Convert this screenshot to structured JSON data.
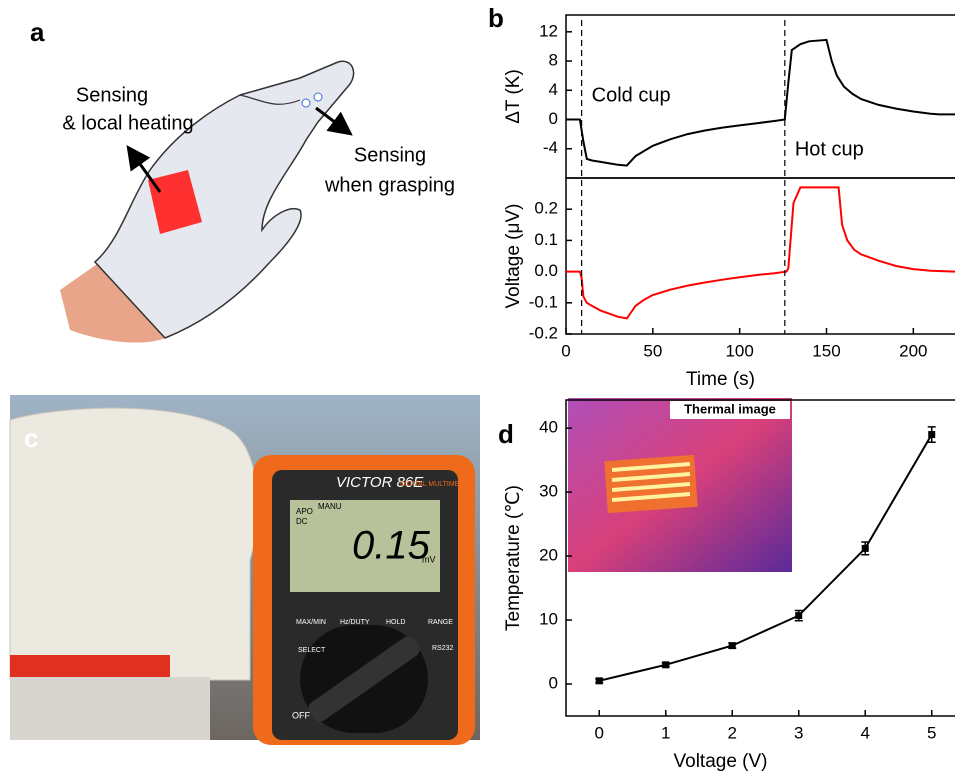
{
  "panel_labels": [
    "a",
    "b",
    "c",
    "d"
  ],
  "panel_a": {
    "labels": [
      "Sensing",
      "& local heating",
      "Sensing",
      "when grasping"
    ]
  },
  "panel_c": {
    "brand": "VICTOR 86E",
    "subtitle": "DIGITAL MULTIMETER",
    "mode": [
      "APO",
      "DC",
      "MANU"
    ],
    "reading": "0.15",
    "unit": "mV",
    "buttons": [
      "MAX/MIN",
      "Hz/DUTY",
      "HOLD",
      "RANGE",
      "SELECT",
      "RS232"
    ],
    "off": "OFF"
  },
  "chart_data": [
    {
      "type": "line",
      "ylabel": "ΔT (K)",
      "color": "#000000",
      "xlim": [
        0,
        224
      ],
      "ylim": [
        -8,
        14.3
      ],
      "yticks": [
        12,
        8,
        4,
        0,
        -4
      ],
      "x": [
        0,
        5,
        8,
        10,
        12,
        15,
        20,
        25,
        30,
        35,
        40,
        50,
        60,
        70,
        80,
        90,
        100,
        110,
        120,
        126,
        128,
        130,
        135,
        140,
        150,
        153,
        156,
        160,
        165,
        170,
        180,
        190,
        200,
        210,
        215,
        224
      ],
      "values": [
        0,
        0,
        0,
        -3,
        -5.4,
        -5.6,
        -5.8,
        -6.0,
        -6.2,
        -6.3,
        -5,
        -3.6,
        -2.7,
        -2,
        -1.5,
        -1.1,
        -0.8,
        -0.5,
        -0.2,
        0,
        5,
        9.5,
        10.3,
        10.7,
        10.9,
        8,
        6,
        4.5,
        3.5,
        2.8,
        2,
        1.5,
        1.1,
        0.8,
        0.7,
        0.7
      ],
      "annotations": [
        {
          "text": "Cold cup",
          "x": 9
        },
        {
          "text": "Hot cup",
          "x": 126
        }
      ]
    },
    {
      "type": "line",
      "ylabel": "Voltage (μV)",
      "xlabel": "Time (s)",
      "color": "#ff0000",
      "xlim": [
        0,
        224
      ],
      "ylim": [
        -0.2,
        0.3
      ],
      "xticks": [
        0,
        50,
        100,
        150,
        200
      ],
      "yticks": [
        0.2,
        0.1,
        {
          "value": 0,
          "label": "0.0"
        },
        -0.1,
        -0.2
      ],
      "x": [
        0,
        8,
        9,
        10,
        12,
        15,
        20,
        25,
        30,
        35,
        40,
        45,
        50,
        60,
        70,
        80,
        90,
        100,
        110,
        120,
        127,
        128,
        131,
        135,
        145,
        157,
        159,
        162,
        166,
        170,
        180,
        190,
        200,
        210,
        224
      ],
      "values": [
        0,
        0,
        -0.02,
        -0.08,
        -0.1,
        -0.11,
        -0.125,
        -0.135,
        -0.145,
        -0.15,
        -0.11,
        -0.09,
        -0.075,
        -0.058,
        -0.045,
        -0.035,
        -0.026,
        -0.018,
        -0.011,
        -0.005,
        0,
        0.01,
        0.22,
        0.27,
        0.27,
        0.27,
        0.15,
        0.1,
        0.07,
        0.055,
        0.035,
        0.018,
        0.008,
        0.003,
        0
      ]
    },
    {
      "type": "line",
      "ylabel": "Temperature (℃)",
      "xlabel": "Voltage (V)",
      "color": "#000000",
      "inset_title": "Thermal image",
      "xlim": [
        -0.5,
        5.35
      ],
      "ylim": [
        -5,
        44.4
      ],
      "xticks": [
        0,
        1,
        2,
        3,
        4,
        5
      ],
      "yticks": [
        0,
        10,
        20,
        30,
        40
      ],
      "x": [
        0,
        1,
        2,
        3,
        4,
        5
      ],
      "values": [
        0.5,
        3,
        6,
        10.7,
        21.2,
        39
      ],
      "errors": [
        0.3,
        0.3,
        0.4,
        0.8,
        1.0,
        1.2
      ]
    }
  ]
}
